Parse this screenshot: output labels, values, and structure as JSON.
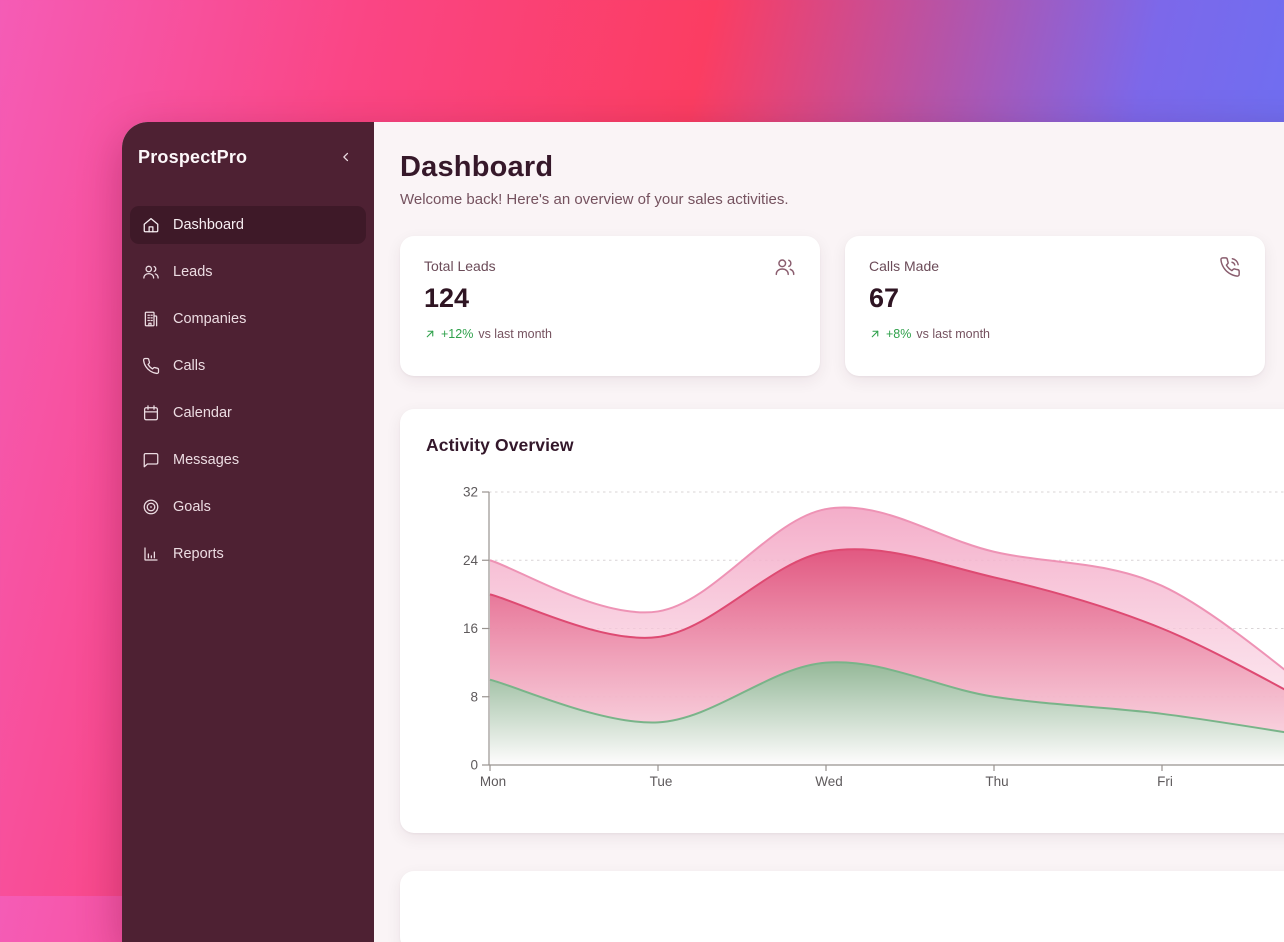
{
  "sidebar": {
    "title": "ProspectPro",
    "collapse_icon": "chevron-left-icon",
    "items": [
      {
        "label": "Dashboard",
        "icon": "home-icon",
        "active": true
      },
      {
        "label": "Leads",
        "icon": "users-icon",
        "active": false
      },
      {
        "label": "Companies",
        "icon": "building-icon",
        "active": false
      },
      {
        "label": "Calls",
        "icon": "phone-icon",
        "active": false
      },
      {
        "label": "Calendar",
        "icon": "calendar-icon",
        "active": false
      },
      {
        "label": "Messages",
        "icon": "message-square-icon",
        "active": false
      },
      {
        "label": "Goals",
        "icon": "target-icon",
        "active": false
      },
      {
        "label": "Reports",
        "icon": "bar-chart-icon",
        "active": false
      }
    ]
  },
  "header": {
    "title": "Dashboard",
    "subtitle": "Welcome back! Here's an overview of your sales activities."
  },
  "stat_cards": [
    {
      "label": "Total Leads",
      "value": "124",
      "icon": "users-icon",
      "trend_icon": "arrow-up-right-icon",
      "trend": "+12%",
      "trend_note": "vs last month"
    },
    {
      "label": "Calls Made",
      "value": "67",
      "icon": "phone-call-icon",
      "trend_icon": "arrow-up-right-icon",
      "trend": "+8%",
      "trend_note": "vs last month"
    }
  ],
  "activity_card": {
    "title": "Activity Overview"
  },
  "chart_data": {
    "type": "area",
    "title": "Activity Overview",
    "categories": [
      "Mon",
      "Tue",
      "Wed",
      "Thu",
      "Fri"
    ],
    "series": [
      {
        "name": "outer-light-pink-area",
        "stroke": "#ee93b5",
        "fill_top": "#f3a6c4",
        "fill_bottom": "#fdeaf2",
        "fill_top_opacity": 0.92,
        "fill_bottom_opacity": 0.6,
        "values": [
          24,
          18,
          30,
          25,
          21
        ],
        "offscreen_tail_value": 7
      },
      {
        "name": "middle-rose-area",
        "stroke": "#de4a72",
        "fill_top": "#e0517b",
        "fill_bottom": "#fbdde7",
        "fill_top_opacity": 0.93,
        "fill_bottom_opacity": 0.75,
        "values": [
          20,
          15,
          25,
          22,
          16
        ],
        "offscreen_tail_value": 6
      },
      {
        "name": "green-area",
        "stroke": "#79b489",
        "fill_top": "#8aba94",
        "fill_bottom": "#ffffff",
        "fill_top_opacity": 0.9,
        "fill_bottom_opacity": 0.92,
        "values": [
          10,
          5,
          12,
          8,
          6
        ],
        "offscreen_tail_value": 3
      }
    ],
    "yticks": [
      0,
      8,
      16,
      24,
      32
    ],
    "ylim": [
      0,
      32
    ],
    "xlabel": "",
    "ylabel": "",
    "grid": "horizontal dashed",
    "legend_position": "none",
    "clipped_right": true
  },
  "colors": {
    "backdrop_gradient": [
      "#f55cb6",
      "#fb3d62",
      "#6b70f3"
    ],
    "sidebar_bg": "#4e2133",
    "sidebar_active_bg": "#3e1928",
    "main_bg": "#faf4f6",
    "card_bg": "#ffffff",
    "heading_text": "#36182a",
    "muted_text": "#75525f",
    "trend_green": "#2fa14b",
    "card_icon": "#8a5d6e",
    "axis_line": "#98938f",
    "grid_line": "#d9d4d6"
  }
}
